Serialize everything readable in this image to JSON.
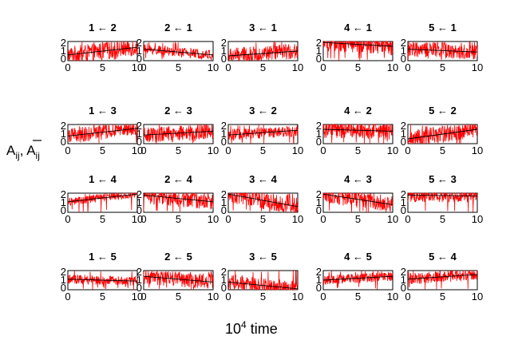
{
  "figure": {
    "ylabel_main": "A",
    "ylabel_sub": "ij",
    "ylabel_sep": ", ",
    "ylabel_bar_main": "A",
    "ylabel_bar_sub": "ij",
    "xlabel_base": "10",
    "xlabel_exp": "4",
    "xlabel_unit": " time"
  },
  "chart_data": {
    "type": "line",
    "grid": false,
    "xlim": [
      0,
      10
    ],
    "ylim": [
      0,
      2
    ],
    "xticks": [
      "0",
      "5",
      "10"
    ],
    "yticks": [
      "2",
      "1",
      "0"
    ],
    "series_colors": {
      "A_ij": "#ff0000",
      "A_bar_ij": "#000000"
    },
    "panels": [
      {
        "title": "1 ← 2",
        "row": 0,
        "col": 0,
        "mean": [
          0.6,
          1.4
        ],
        "spread": 0.9
      },
      {
        "title": "2 ← 1",
        "row": 0,
        "col": 1,
        "mean": [
          1.2,
          0.6
        ],
        "spread": 0.5
      },
      {
        "title": "3 ← 1",
        "row": 0,
        "col": 2,
        "mean": [
          0.5,
          1.0
        ],
        "spread": 0.8
      },
      {
        "title": "4 ← 1",
        "row": 0,
        "col": 3,
        "mean": [
          1.9,
          1.5
        ],
        "spread": 0.9
      },
      {
        "title": "5 ← 1",
        "row": 0,
        "col": 4,
        "mean": [
          1.2,
          0.9
        ],
        "spread": 0.8
      },
      {
        "title": "1 ← 3",
        "row": 1,
        "col": 0,
        "mean": [
          0.8,
          1.6
        ],
        "spread": 0.8
      },
      {
        "title": "2 ← 3",
        "row": 1,
        "col": 1,
        "mean": [
          0.9,
          1.3
        ],
        "spread": 0.8
      },
      {
        "title": "3 ← 2",
        "row": 1,
        "col": 2,
        "mean": [
          0.9,
          1.4
        ],
        "spread": 0.6
      },
      {
        "title": "4 ← 2",
        "row": 1,
        "col": 3,
        "mean": [
          1.5,
          1.3
        ],
        "spread": 0.9
      },
      {
        "title": "5 ← 2",
        "row": 1,
        "col": 4,
        "mean": [
          0.5,
          1.5
        ],
        "spread": 0.9
      },
      {
        "title": "1 ← 4",
        "row": 2,
        "col": 0,
        "mean": [
          1.1,
          1.9
        ],
        "spread": 0.4
      },
      {
        "title": "2 ← 4",
        "row": 2,
        "col": 1,
        "mean": [
          1.8,
          1.1
        ],
        "spread": 0.9
      },
      {
        "title": "3 ← 4",
        "row": 2,
        "col": 2,
        "mean": [
          1.9,
          0.6
        ],
        "spread": 0.9
      },
      {
        "title": "4 ← 3",
        "row": 2,
        "col": 3,
        "mean": [
          1.9,
          0.8
        ],
        "spread": 0.9
      },
      {
        "title": "5 ← 3",
        "row": 2,
        "col": 4,
        "mean": [
          1.8,
          1.7
        ],
        "spread": 0.7
      },
      {
        "title": "1 ← 5",
        "row": 3,
        "col": 0,
        "mean": [
          1.1,
          0.9
        ],
        "spread": 0.5
      },
      {
        "title": "2 ← 5",
        "row": 3,
        "col": 1,
        "mean": [
          1.4,
          0.8
        ],
        "spread": 0.8
      },
      {
        "title": "3 ← 5",
        "row": 3,
        "col": 2,
        "mean": [
          0.8,
          0.1
        ],
        "spread": 0.8
      },
      {
        "title": "4 ← 5",
        "row": 3,
        "col": 3,
        "mean": [
          1.0,
          1.4
        ],
        "spread": 0.5
      },
      {
        "title": "5 ← 4",
        "row": 3,
        "col": 4,
        "mean": [
          1.1,
          1.6
        ],
        "spread": 0.6
      }
    ]
  }
}
